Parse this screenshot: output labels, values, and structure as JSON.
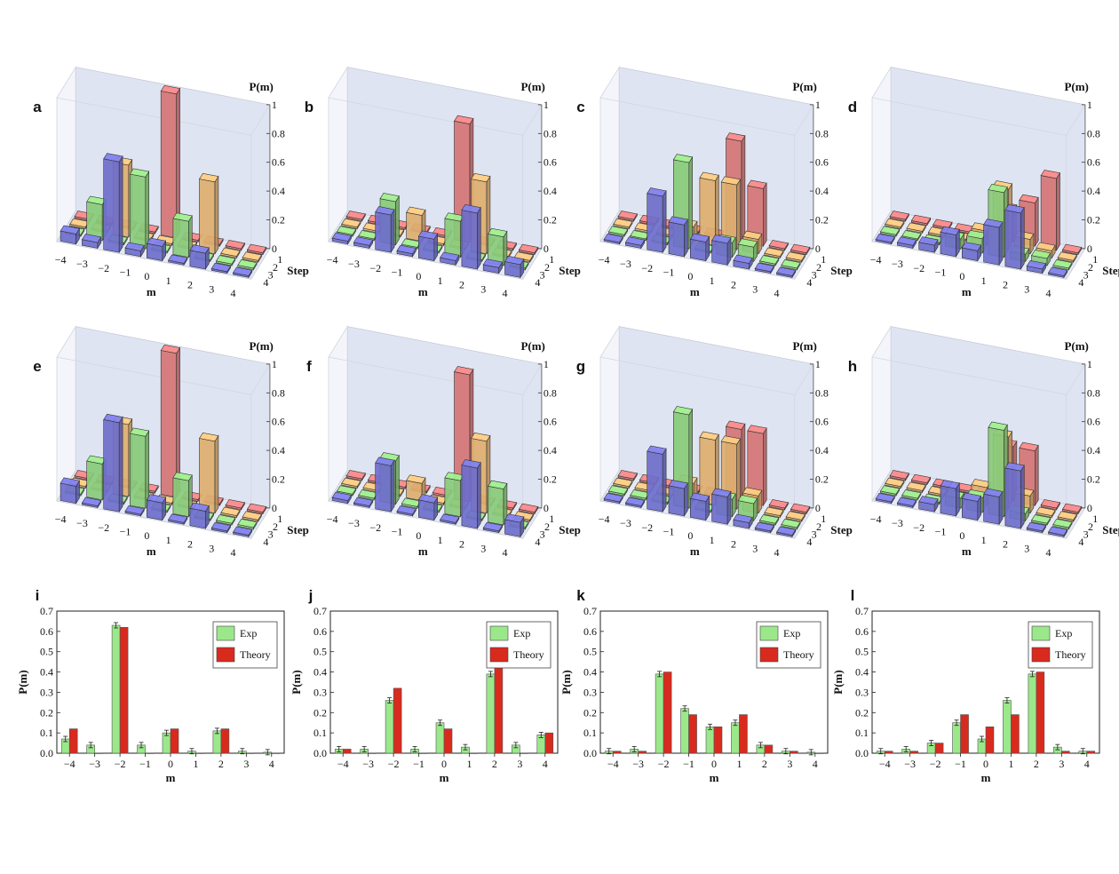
{
  "colors": {
    "step1": "#e07b7b",
    "step2": "#e9b774",
    "step3": "#8fd67f",
    "step4": "#7474d6",
    "exp": "#9be88b",
    "theory": "#d92a1e",
    "wall": "#d9dff0"
  },
  "panels3d": [
    {
      "label": "a",
      "zlabel": "P(m)",
      "xlabel": "m",
      "ylabel": "Step",
      "xticks": [
        "−4",
        "−3",
        "−2",
        "−1",
        "0",
        "1",
        "2",
        "3",
        "4"
      ],
      "zticks": [
        "0",
        "0.2",
        "0.4",
        "0.6",
        "0.8",
        "1"
      ],
      "yticks": [
        "1",
        "2",
        "3",
        "4"
      ]
    },
    {
      "label": "b",
      "zlabel": "P(m)",
      "xlabel": "m",
      "ylabel": "Step",
      "xticks": [
        "−4",
        "−3",
        "−2",
        "−1",
        "0",
        "1",
        "2",
        "3",
        "4"
      ],
      "zticks": [
        "0",
        "0.2",
        "0.4",
        "0.6",
        "0.8",
        "1"
      ],
      "yticks": [
        "1",
        "2",
        "3",
        "4"
      ]
    },
    {
      "label": "c",
      "zlabel": "P(m)",
      "xlabel": "m",
      "ylabel": "Step",
      "xticks": [
        "−4",
        "−3",
        "−2",
        "−1",
        "0",
        "1",
        "2",
        "3",
        "4"
      ],
      "zticks": [
        "0",
        "0.2",
        "0.4",
        "0.6",
        "0.8",
        "1"
      ],
      "yticks": [
        "1",
        "2",
        "3",
        "4"
      ]
    },
    {
      "label": "d",
      "zlabel": "P(m)",
      "xlabel": "m",
      "ylabel": "Step",
      "xticks": [
        "−4",
        "−3",
        "−2",
        "−1",
        "0",
        "1",
        "2",
        "3",
        "4"
      ],
      "zticks": [
        "0",
        "0.2",
        "0.4",
        "0.6",
        "0.8",
        "1"
      ],
      "yticks": [
        "1",
        "2",
        "3",
        "4"
      ]
    },
    {
      "label": "e",
      "zlabel": "P(m)",
      "xlabel": "m",
      "ylabel": "Step",
      "xticks": [
        "−4",
        "−3",
        "−2",
        "−1",
        "0",
        "1",
        "2",
        "3",
        "4"
      ],
      "zticks": [
        "0",
        "0.2",
        "0.4",
        "0.6",
        "0.8",
        "1"
      ],
      "yticks": [
        "1",
        "2",
        "3",
        "4"
      ]
    },
    {
      "label": "f",
      "zlabel": "P(m)",
      "xlabel": "m",
      "ylabel": "Step",
      "xticks": [
        "−4",
        "−3",
        "−2",
        "−1",
        "0",
        "1",
        "2",
        "3",
        "4"
      ],
      "zticks": [
        "0",
        "0.2",
        "0.4",
        "0.6",
        "0.8",
        "1"
      ],
      "yticks": [
        "1",
        "2",
        "3",
        "4"
      ]
    },
    {
      "label": "g",
      "zlabel": "P(m)",
      "xlabel": "m",
      "ylabel": "Step",
      "xticks": [
        "−4",
        "−3",
        "−2",
        "−1",
        "0",
        "1",
        "2",
        "3",
        "4"
      ],
      "zticks": [
        "0",
        "0.2",
        "0.4",
        "0.6",
        "0.8",
        "1"
      ],
      "yticks": [
        "1",
        "2",
        "3",
        "4"
      ]
    },
    {
      "label": "h",
      "zlabel": "P(m)",
      "xlabel": "m",
      "ylabel": "Step",
      "xticks": [
        "−4",
        "−3",
        "−2",
        "−1",
        "0",
        "1",
        "2",
        "3",
        "4"
      ],
      "zticks": [
        "0",
        "0.2",
        "0.4",
        "0.6",
        "0.8",
        "1"
      ],
      "yticks": [
        "1",
        "2",
        "3",
        "4"
      ]
    }
  ],
  "chart_data": [
    {
      "panel": "a",
      "type": "bar3d",
      "xlabel": "m",
      "ylabel": "Step",
      "zlabel": "P(m)",
      "zlim": [
        0,
        1
      ],
      "x": [
        -4,
        -3,
        -2,
        -1,
        0,
        1,
        2,
        3,
        4
      ],
      "steps": [
        1,
        2,
        3,
        4
      ],
      "series": [
        {
          "step": 1,
          "values": [
            0,
            0,
            0,
            0,
            1,
            0,
            0,
            0,
            0
          ]
        },
        {
          "step": 2,
          "values": [
            0,
            0,
            0.5,
            0,
            0,
            0,
            0.5,
            0,
            0
          ]
        },
        {
          "step": 3,
          "values": [
            0,
            0.25,
            0,
            0.5,
            0,
            0.25,
            0,
            0,
            0
          ]
        },
        {
          "step": 4,
          "values": [
            0.07,
            0.04,
            0.63,
            0.04,
            0.1,
            0.01,
            0.11,
            0.01,
            0.01
          ]
        }
      ]
    },
    {
      "panel": "b",
      "type": "bar3d",
      "xlabel": "m",
      "ylabel": "Step",
      "zlabel": "P(m)",
      "zlim": [
        0,
        1
      ],
      "x": [
        -4,
        -3,
        -2,
        -1,
        0,
        1,
        2,
        3,
        4
      ],
      "steps": [
        1,
        2,
        3,
        4
      ],
      "series": [
        {
          "step": 1,
          "values": [
            0,
            0,
            0,
            0,
            0,
            0.82,
            0,
            0,
            0
          ]
        },
        {
          "step": 2,
          "values": [
            0,
            0,
            0,
            0.18,
            0,
            0,
            0.5,
            0,
            0
          ]
        },
        {
          "step": 3,
          "values": [
            0,
            0,
            0.3,
            0,
            0,
            0.25,
            0,
            0.2,
            0
          ]
        },
        {
          "step": 4,
          "values": [
            0.02,
            0.02,
            0.26,
            0.02,
            0.15,
            0.03,
            0.39,
            0.04,
            0.09
          ]
        }
      ]
    },
    {
      "panel": "c",
      "type": "bar3d",
      "xlabel": "m",
      "ylabel": "Step",
      "zlabel": "P(m)",
      "zlim": [
        0,
        1
      ],
      "x": [
        -4,
        -3,
        -2,
        -1,
        0,
        1,
        2,
        3,
        4
      ],
      "steps": [
        1,
        2,
        3,
        4
      ],
      "series": [
        {
          "step": 1,
          "values": [
            0,
            0,
            0,
            0,
            0,
            0.7,
            0.4,
            0,
            0
          ]
        },
        {
          "step": 2,
          "values": [
            0,
            0,
            0,
            0.1,
            0.45,
            0.45,
            0.1,
            0,
            0
          ]
        },
        {
          "step": 3,
          "values": [
            0,
            0,
            0,
            0.6,
            0,
            0.1,
            0.1,
            0,
            0
          ]
        },
        {
          "step": 4,
          "values": [
            0.01,
            0.02,
            0.39,
            0.22,
            0.13,
            0.15,
            0.04,
            0.01,
            0
          ]
        }
      ]
    },
    {
      "panel": "d",
      "type": "bar3d",
      "xlabel": "m",
      "ylabel": "Step",
      "zlabel": "P(m)",
      "zlim": [
        0,
        1
      ],
      "x": [
        -4,
        -3,
        -2,
        -1,
        0,
        1,
        2,
        3,
        4
      ],
      "steps": [
        1,
        2,
        3,
        4
      ],
      "series": [
        {
          "step": 1,
          "values": [
            0,
            0,
            0,
            0,
            0,
            0.22,
            0.3,
            0.5,
            0
          ]
        },
        {
          "step": 2,
          "values": [
            0,
            0,
            0,
            0,
            0.1,
            0.42,
            0.1,
            0.05,
            0
          ]
        },
        {
          "step": 3,
          "values": [
            0,
            0,
            0,
            0.07,
            0.1,
            0.45,
            0.05,
            0.05,
            0
          ]
        },
        {
          "step": 4,
          "values": [
            0.01,
            0.02,
            0.05,
            0.15,
            0.07,
            0.26,
            0.39,
            0.03,
            0.01
          ]
        }
      ]
    },
    {
      "panel": "e",
      "type": "bar3d",
      "xlabel": "m",
      "ylabel": "Step",
      "zlabel": "P(m)",
      "zlim": [
        0,
        1
      ],
      "x": [
        -4,
        -3,
        -2,
        -1,
        0,
        1,
        2,
        3,
        4
      ],
      "steps": [
        1,
        2,
        3,
        4
      ],
      "series": [
        {
          "step": 1,
          "values": [
            0,
            0,
            0,
            0,
            1,
            0,
            0,
            0,
            0
          ]
        },
        {
          "step": 2,
          "values": [
            0,
            0,
            0.5,
            0,
            0,
            0,
            0.5,
            0,
            0
          ]
        },
        {
          "step": 3,
          "values": [
            0,
            0.25,
            0,
            0.5,
            0,
            0.25,
            0,
            0,
            0
          ]
        },
        {
          "step": 4,
          "values": [
            0.12,
            0,
            0.62,
            0,
            0.12,
            0,
            0.12,
            0,
            0
          ]
        }
      ]
    },
    {
      "panel": "f",
      "type": "bar3d",
      "xlabel": "m",
      "ylabel": "Step",
      "zlabel": "P(m)",
      "zlim": [
        0,
        1
      ],
      "x": [
        -4,
        -3,
        -2,
        -1,
        0,
        1,
        2,
        3,
        4
      ],
      "steps": [
        1,
        2,
        3,
        4
      ],
      "series": [
        {
          "step": 1,
          "values": [
            0,
            0,
            0,
            0,
            0,
            0.88,
            0,
            0,
            0
          ]
        },
        {
          "step": 2,
          "values": [
            0,
            0,
            0,
            0.12,
            0,
            0,
            0.5,
            0,
            0
          ]
        },
        {
          "step": 3,
          "values": [
            0,
            0,
            0.3,
            0,
            0,
            0.25,
            0,
            0.25,
            0
          ]
        },
        {
          "step": 4,
          "values": [
            0.02,
            0,
            0.32,
            0,
            0.12,
            0,
            0.42,
            0,
            0.1
          ]
        }
      ]
    },
    {
      "panel": "g",
      "type": "bar3d",
      "xlabel": "m",
      "ylabel": "Step",
      "zlabel": "P(m)",
      "zlim": [
        0,
        1
      ],
      "x": [
        -4,
        -3,
        -2,
        -1,
        0,
        1,
        2,
        3,
        4
      ],
      "steps": [
        1,
        2,
        3,
        4
      ],
      "series": [
        {
          "step": 1,
          "values": [
            0,
            0,
            0,
            0,
            0,
            0.5,
            0.5,
            0,
            0
          ]
        },
        {
          "step": 2,
          "values": [
            0,
            0,
            0,
            0.12,
            0.45,
            0.45,
            0.12,
            0,
            0
          ]
        },
        {
          "step": 3,
          "values": [
            0,
            0,
            0,
            0.65,
            0,
            0.12,
            0.12,
            0,
            0
          ]
        },
        {
          "step": 4,
          "values": [
            0.01,
            0.01,
            0.4,
            0.19,
            0.13,
            0.19,
            0.04,
            0.01,
            0
          ]
        }
      ]
    },
    {
      "panel": "h",
      "type": "bar3d",
      "xlabel": "m",
      "ylabel": "Step",
      "zlabel": "P(m)",
      "zlim": [
        0,
        1
      ],
      "x": [
        -4,
        -3,
        -2,
        -1,
        0,
        1,
        2,
        3,
        4
      ],
      "steps": [
        1,
        2,
        3,
        4
      ],
      "series": [
        {
          "step": 1,
          "values": [
            0,
            0,
            0,
            0,
            0,
            0.38,
            0.38,
            0,
            0
          ]
        },
        {
          "step": 2,
          "values": [
            0,
            0,
            0,
            0,
            0.12,
            0.5,
            0.12,
            0,
            0
          ]
        },
        {
          "step": 3,
          "values": [
            0,
            0,
            0,
            0.07,
            0.1,
            0.6,
            0.05,
            0,
            0
          ]
        },
        {
          "step": 4,
          "values": [
            0.01,
            0.01,
            0.05,
            0.19,
            0.13,
            0.19,
            0.4,
            0.01,
            0.01
          ]
        }
      ]
    },
    {
      "panel": "i",
      "type": "bar",
      "title": "",
      "xlabel": "m",
      "ylabel": "P(m)",
      "ylim": [
        0,
        0.7
      ],
      "categories": [
        "−4",
        "−3",
        "−2",
        "−1",
        "0",
        "1",
        "2",
        "3",
        "4"
      ],
      "yticks": [
        "0.0",
        "0.1",
        "0.2",
        "0.3",
        "0.4",
        "0.5",
        "0.6",
        "0.7"
      ],
      "series": [
        {
          "name": "Exp",
          "values": [
            0.07,
            0.04,
            0.63,
            0.04,
            0.1,
            0.01,
            0.11,
            0.01,
            0.005
          ]
        },
        {
          "name": "Theory",
          "values": [
            0.12,
            0,
            0.62,
            0,
            0.12,
            0,
            0.12,
            0,
            0
          ]
        }
      ]
    },
    {
      "panel": "j",
      "type": "bar",
      "title": "",
      "xlabel": "m",
      "ylabel": "P(m)",
      "ylim": [
        0,
        0.7
      ],
      "categories": [
        "−4",
        "−3",
        "−2",
        "−1",
        "0",
        "1",
        "2",
        "3",
        "4"
      ],
      "yticks": [
        "0.0",
        "0.1",
        "0.2",
        "0.3",
        "0.4",
        "0.5",
        "0.6",
        "0.7"
      ],
      "series": [
        {
          "name": "Exp",
          "values": [
            0.02,
            0.02,
            0.26,
            0.02,
            0.15,
            0.03,
            0.39,
            0.04,
            0.09
          ]
        },
        {
          "name": "Theory",
          "values": [
            0.02,
            0,
            0.32,
            0,
            0.12,
            0,
            0.42,
            0,
            0.1
          ]
        }
      ]
    },
    {
      "panel": "k",
      "type": "bar",
      "title": "",
      "xlabel": "m",
      "ylabel": "P(m)",
      "ylim": [
        0,
        0.7
      ],
      "categories": [
        "−4",
        "−3",
        "−2",
        "−1",
        "0",
        "1",
        "2",
        "3",
        "4"
      ],
      "yticks": [
        "0.0",
        "0.1",
        "0.2",
        "0.3",
        "0.4",
        "0.5",
        "0.6",
        "0.7"
      ],
      "series": [
        {
          "name": "Exp",
          "values": [
            0.01,
            0.02,
            0.39,
            0.22,
            0.13,
            0.15,
            0.04,
            0.01,
            0.005
          ]
        },
        {
          "name": "Theory",
          "values": [
            0.01,
            0.01,
            0.4,
            0.19,
            0.13,
            0.19,
            0.04,
            0.01,
            0
          ]
        }
      ]
    },
    {
      "panel": "l",
      "type": "bar",
      "title": "",
      "xlabel": "m",
      "ylabel": "P(m)",
      "ylim": [
        0,
        0.7
      ],
      "categories": [
        "−4",
        "−3",
        "−2",
        "−1",
        "0",
        "1",
        "2",
        "3",
        "4"
      ],
      "yticks": [
        "0.0",
        "0.1",
        "0.2",
        "0.3",
        "0.4",
        "0.5",
        "0.6",
        "0.7"
      ],
      "series": [
        {
          "name": "Exp",
          "values": [
            0.01,
            0.02,
            0.05,
            0.15,
            0.07,
            0.26,
            0.39,
            0.03,
            0.01
          ]
        },
        {
          "name": "Theory",
          "values": [
            0.01,
            0.01,
            0.05,
            0.19,
            0.13,
            0.19,
            0.4,
            0.01,
            0.01
          ]
        }
      ]
    }
  ]
}
